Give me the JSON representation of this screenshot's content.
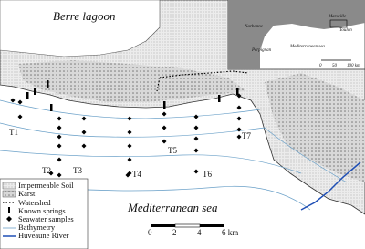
{
  "map": {
    "labels": {
      "lagoon": "Berre lagoon",
      "sea": "Mediterranean sea"
    },
    "stations": [
      "T1",
      "T2",
      "T3",
      "T4",
      "T5",
      "T6",
      "T7"
    ],
    "inset": {
      "cities": [
        "Narbonne",
        "Perpignan",
        "Marseille",
        "Toulon"
      ],
      "sea": "Mediterranean sea",
      "scale": [
        "0",
        "50",
        "100 km"
      ]
    },
    "scale_bar": [
      "0",
      "2",
      "4",
      "6 km"
    ],
    "legend": [
      "Impermeable Soil",
      "Karst",
      "Watershed",
      "Known springs",
      "Seawater samples",
      "Bathymetry",
      "Huveaune River"
    ]
  }
}
